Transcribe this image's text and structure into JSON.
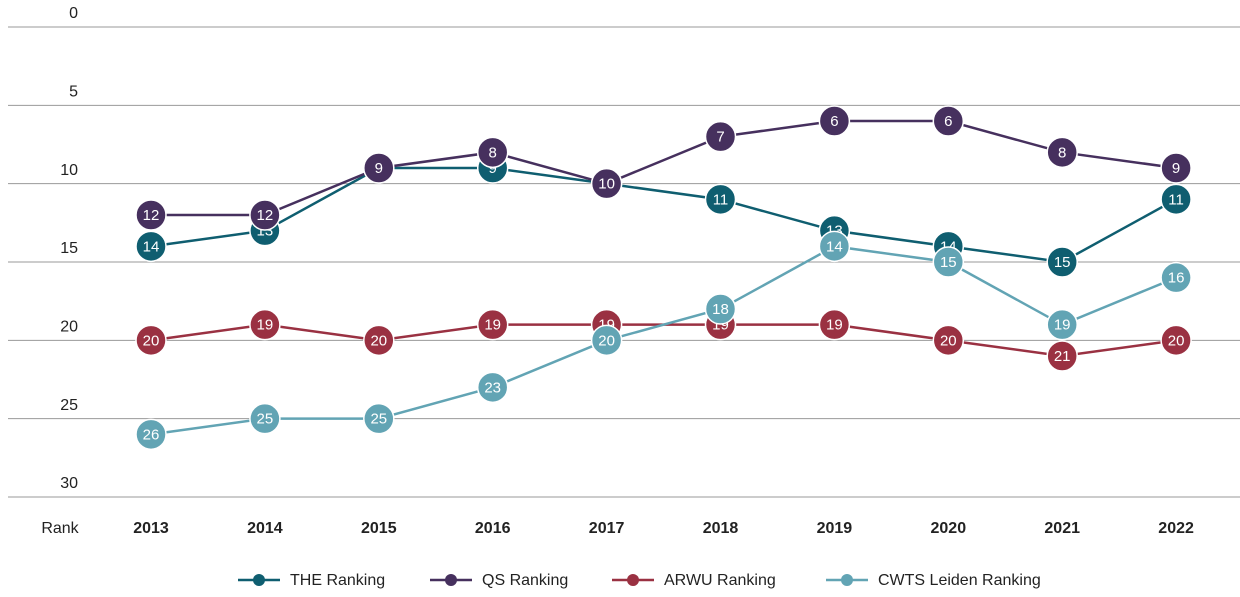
{
  "chart_data": {
    "type": "line",
    "ylabel": "Rank",
    "categories": [
      "2013",
      "2014",
      "2015",
      "2016",
      "2017",
      "2018",
      "2019",
      "2020",
      "2021",
      "2022"
    ],
    "series": [
      {
        "name": "THE Ranking",
        "color": "#0f5e70",
        "values": [
          14,
          13,
          9,
          9,
          10,
          11,
          13,
          14,
          15,
          11
        ]
      },
      {
        "name": "QS Ranking",
        "color": "#46305e",
        "values": [
          12,
          12,
          9,
          8,
          10,
          7,
          6,
          6,
          8,
          9
        ]
      },
      {
        "name": "ARWU Ranking",
        "color": "#9a3142",
        "values": [
          20,
          19,
          20,
          19,
          19,
          19,
          19,
          20,
          21,
          20
        ]
      },
      {
        "name": "CWTS Leiden Ranking",
        "color": "#62a4b4",
        "values": [
          26,
          25,
          25,
          23,
          20,
          18,
          14,
          15,
          19,
          16
        ]
      }
    ],
    "ylim": [
      0,
      30
    ],
    "yticks": [
      0,
      5,
      10,
      15,
      20,
      25,
      30
    ],
    "y_inverted": true,
    "grid": true,
    "legend": "bottom"
  }
}
